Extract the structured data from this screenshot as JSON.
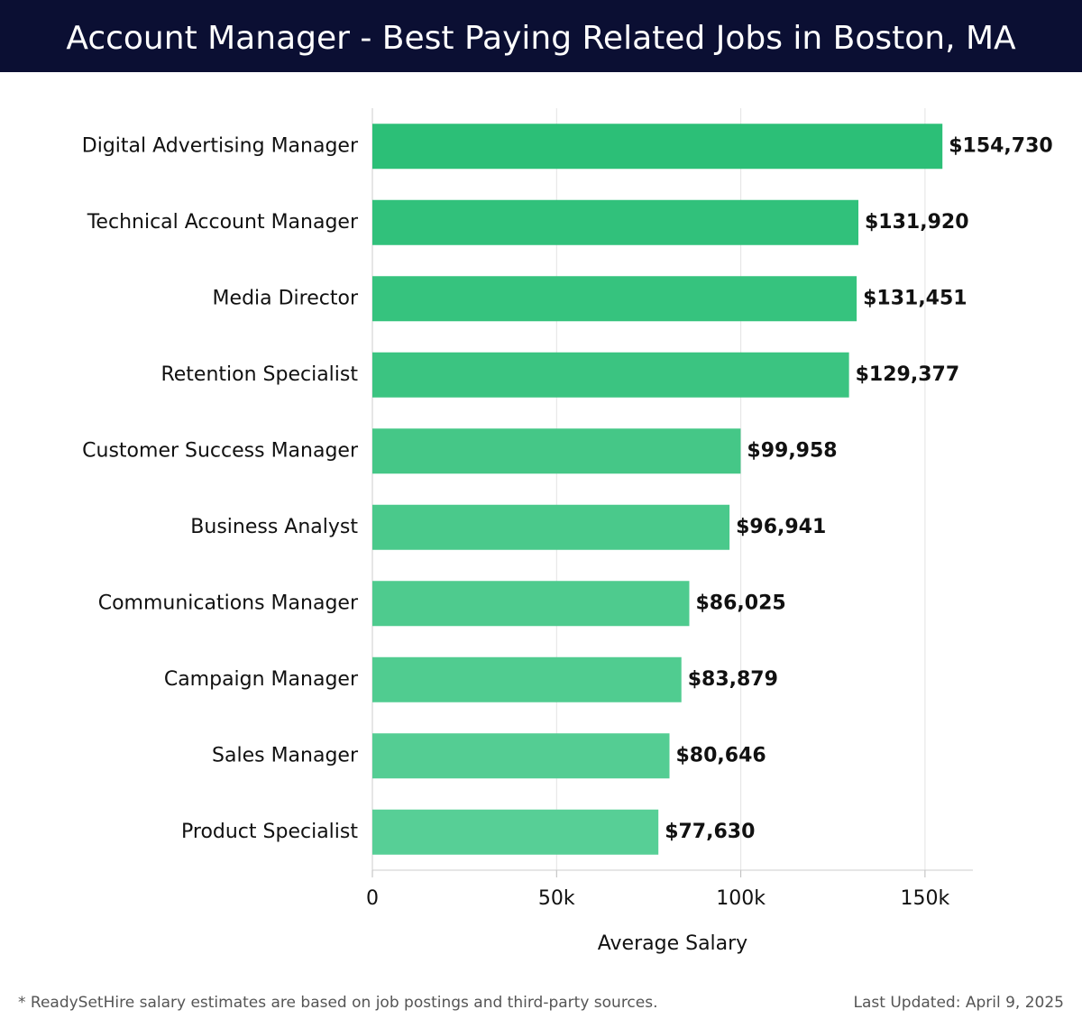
{
  "chart_data": {
    "type": "hbar",
    "title": "Account Manager - Best Paying Related Jobs in Boston, MA",
    "categories": [
      "Digital Advertising Manager",
      "Technical Account Manager",
      "Media Director",
      "Retention Specialist",
      "Customer Success Manager",
      "Business Analyst",
      "Communications Manager",
      "Campaign Manager",
      "Sales Manager",
      "Product Specialist"
    ],
    "values": [
      154730,
      131920,
      131451,
      129377,
      99958,
      96941,
      86025,
      83879,
      80646,
      77630
    ],
    "value_labels": [
      "$154,730",
      "$131,920",
      "$131,451",
      "$129,377",
      "$99,958",
      "$96,941",
      "$86,025",
      "$83,879",
      "$80,646",
      "$77,630"
    ],
    "colors": [
      "#2cbf77",
      "#31c17b",
      "#36c37e",
      "#3bc481",
      "#45c787",
      "#4ac98b",
      "#4ecb8e",
      "#50cc90",
      "#54cd93",
      "#57cf96"
    ],
    "xlim": [
      0,
      163000
    ],
    "xticks": [
      0,
      {
        "value": 50000,
        "label": "50k"
      },
      {
        "value": 100000,
        "label": "100k"
      },
      {
        "value": 150000,
        "label": "150k"
      }
    ],
    "xlabel": "Average Salary",
    "grid": true,
    "footnote": "* ReadySetHire salary estimates are based on job postings and third-party sources.",
    "last_updated": "Last Updated: April 9, 2025"
  }
}
